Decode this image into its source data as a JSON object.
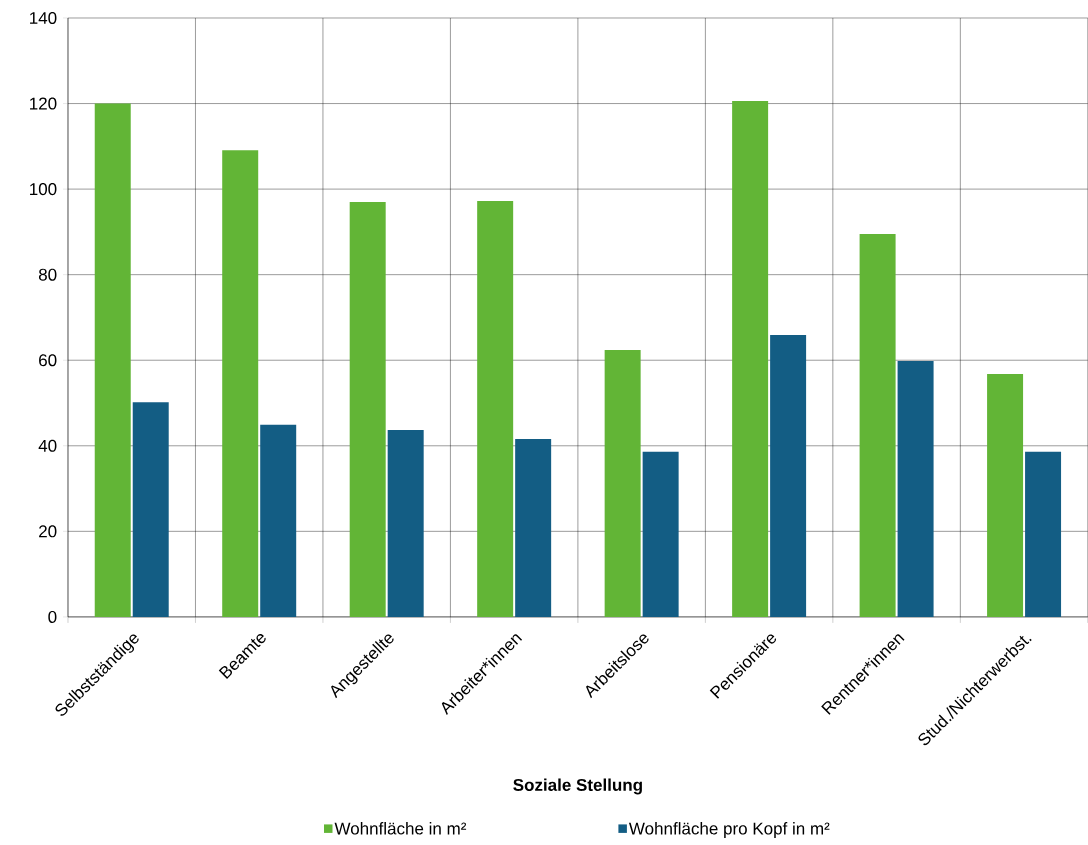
{
  "chart_data": {
    "type": "bar",
    "xlabel": "Soziale Stellung",
    "categories": [
      "Selbstständige",
      "Beamte",
      "Angestellte",
      "Arbeiter*innen",
      "Arbeitslose",
      "Pensionäre",
      "Rentner*innen",
      "Stud./Nichterwerbst."
    ],
    "series": [
      {
        "name": "Wohnfläche in m²",
        "color": "#62b536",
        "values": [
          120,
          109.1,
          97,
          97.2,
          62.4,
          120.6,
          89.5,
          56.8
        ]
      },
      {
        "name": "Wohnfläche pro Kopf in m²",
        "color": "#135d84",
        "values": [
          50.2,
          44.9,
          43.7,
          41.6,
          38.6,
          65.9,
          59.8,
          38.6
        ]
      }
    ],
    "ylim": [
      0,
      140
    ],
    "yticks": [
      0,
      20,
      40,
      60,
      80,
      100,
      120,
      140
    ],
    "grid": true,
    "legend": "bottom"
  }
}
